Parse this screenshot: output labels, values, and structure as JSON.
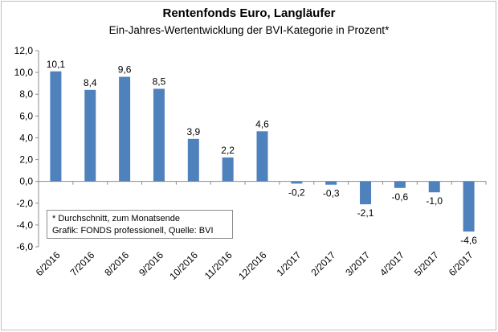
{
  "chart_data": {
    "type": "bar",
    "title": "Rentenfonds Euro, Langläufer",
    "subtitle": "Ein-Jahres-Wertentwicklung der BVI-Kategorie in Prozent*",
    "categories": [
      "6/2016",
      "7/2016",
      "8/2016",
      "9/2016",
      "10/2016",
      "11/2016",
      "12/2016",
      "1/2017",
      "2/2017",
      "3/2017",
      "4/2017",
      "5/2017",
      "6/2017"
    ],
    "values": [
      10.1,
      8.4,
      9.6,
      8.5,
      3.9,
      2.2,
      4.6,
      -0.2,
      -0.3,
      -2.1,
      -0.6,
      -1.0,
      -4.6
    ],
    "value_labels": [
      "10,1",
      "8,4",
      "9,6",
      "8,5",
      "3,9",
      "2,2",
      "4,6",
      "-0,2",
      "-0,3",
      "-2,1",
      "-0,6",
      "-1,0",
      "-4,6"
    ],
    "ylim": [
      -6,
      12
    ],
    "yticks": [
      12,
      10,
      8,
      6,
      4,
      2,
      0,
      -2,
      -4,
      -6
    ],
    "ytick_labels": [
      "12,0",
      "10,0",
      "8,0",
      "6,0",
      "4,0",
      "2,0",
      "0,0",
      "-2,0",
      "-4,0",
      "-6,0"
    ],
    "bar_color": "#4f81bd",
    "grid": false,
    "notes": [
      "* Durchschnitt, zum Monatsende",
      "Grafik: FONDS professionell, Quelle: BVI"
    ]
  }
}
